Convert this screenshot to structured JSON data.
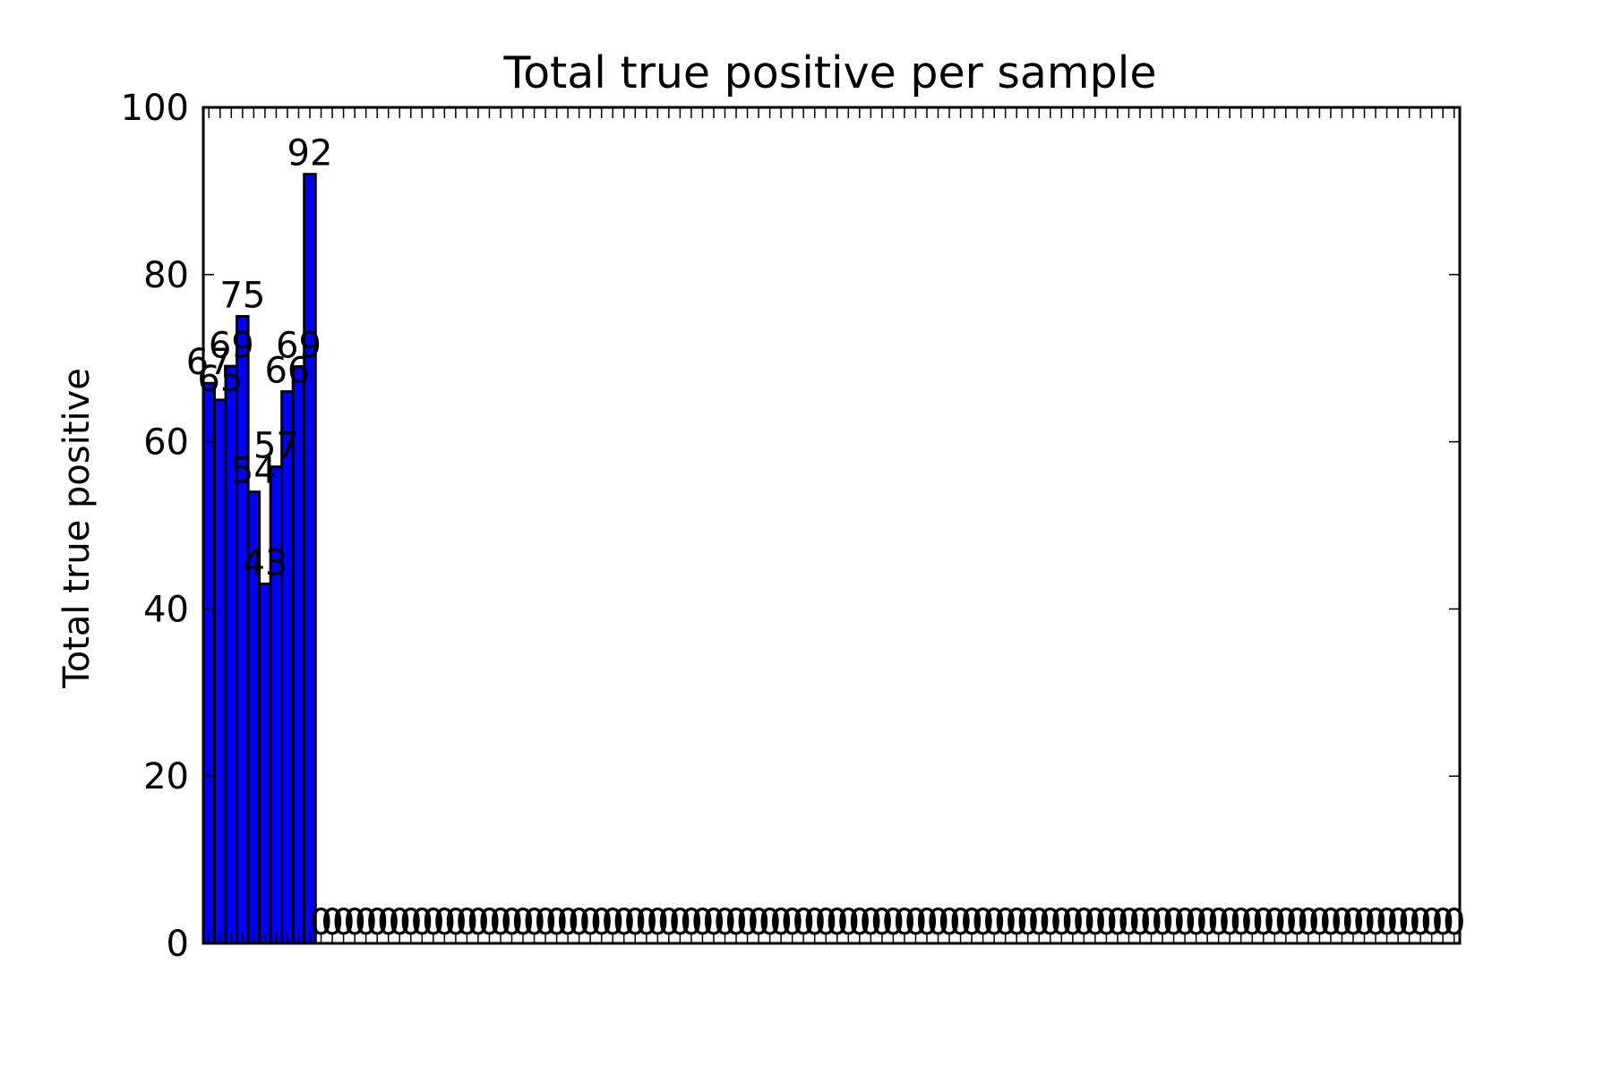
{
  "chart_data": {
    "type": "bar",
    "title": "Total true positive per sample",
    "ylabel": "Total true positive",
    "xlabel": "",
    "ylim": [
      0,
      100
    ],
    "yticks": [
      0,
      20,
      40,
      60,
      80,
      100
    ],
    "grid": false,
    "bar_color": "#0000ff",
    "edge_color": "#000000",
    "values": [
      67,
      65,
      69,
      75,
      54,
      43,
      57,
      66,
      69,
      92,
      0,
      0,
      0,
      0,
      0,
      0,
      0,
      0,
      0,
      0,
      0,
      0,
      0,
      0,
      0,
      0,
      0,
      0,
      0,
      0,
      0,
      0,
      0,
      0,
      0,
      0,
      0,
      0,
      0,
      0,
      0,
      0,
      0,
      0,
      0,
      0,
      0,
      0,
      0,
      0,
      0,
      0,
      0,
      0,
      0,
      0,
      0,
      0,
      0,
      0,
      0,
      0,
      0,
      0,
      0,
      0,
      0,
      0,
      0,
      0,
      0,
      0,
      0,
      0,
      0,
      0,
      0,
      0,
      0,
      0,
      0,
      0,
      0,
      0,
      0,
      0,
      0,
      0,
      0,
      0,
      0,
      0,
      0,
      0,
      0,
      0,
      0,
      0,
      0,
      0,
      0,
      0,
      0,
      0,
      0,
      0,
      0,
      0,
      0,
      0,
      0,
      0
    ]
  }
}
